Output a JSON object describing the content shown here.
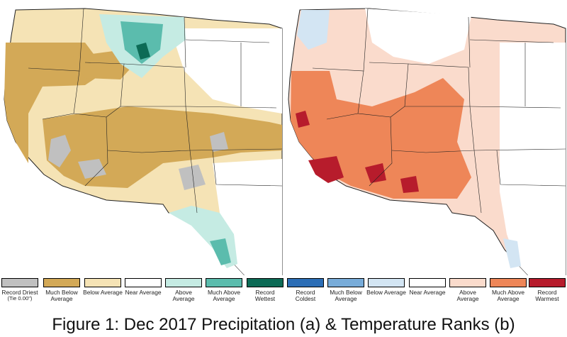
{
  "caption": "Figure 1: Dec 2017 Precipitation (a) & Temperature Ranks (b)",
  "precipitation_legend": [
    {
      "label": "Record Driest",
      "sublabel": "(Tie 0.00\")",
      "color": "#c0c0c0"
    },
    {
      "label": "Much Below Average",
      "color": "#d3a957"
    },
    {
      "label": "Below Average",
      "color": "#f5e3b5"
    },
    {
      "label": "Near Average",
      "color": "#ffffff"
    },
    {
      "label": "Above Average",
      "color": "#c5ebe3"
    },
    {
      "label": "Much Above Average",
      "color": "#5bbcad"
    },
    {
      "label": "Record Wettest",
      "color": "#0d6b56"
    }
  ],
  "temperature_legend": [
    {
      "label": "Record Coldest",
      "color": "#2c6eb6"
    },
    {
      "label": "Much Below Average",
      "color": "#78acd9"
    },
    {
      "label": "Below Average",
      "color": "#d3e5f3"
    },
    {
      "label": "Near Average",
      "color": "#ffffff"
    },
    {
      "label": "Above Average",
      "color": "#fadbcc"
    },
    {
      "label": "Much Above Average",
      "color": "#ee8658"
    },
    {
      "label": "Record Warmest",
      "color": "#b71c2c"
    }
  ]
}
